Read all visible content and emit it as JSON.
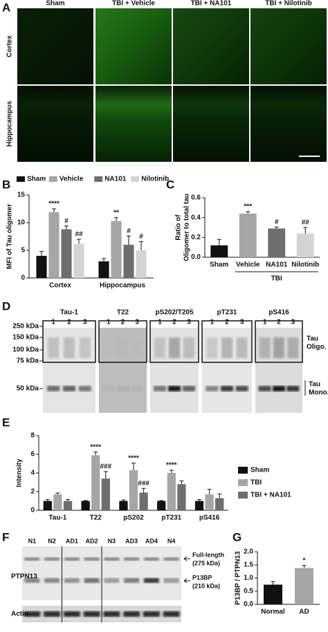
{
  "panel_a": {
    "label": "A",
    "columns": [
      "Sham",
      "TBI + Vehicle",
      "TBI + NA101",
      "TBI + Nilotinib"
    ],
    "rows": [
      "Cortex",
      "Hippocampus"
    ]
  },
  "chart_data": [
    {
      "type": "bar",
      "panel": "B",
      "y_label": "MFI of Tau oligomer",
      "categories": [
        "Cortex",
        "Hippocampus"
      ],
      "series": [
        {
          "name": "Sham",
          "color": "#111111",
          "values": [
            4,
            3
          ],
          "errors": [
            0.8,
            0.5
          ]
        },
        {
          "name": "Vehicle",
          "color": "#a6a6a6",
          "values": [
            11.9,
            10.3
          ],
          "errors": [
            0.6,
            0.6
          ],
          "annotations": [
            "****",
            "**"
          ]
        },
        {
          "name": "NA101",
          "color": "#6e6e6e",
          "values": [
            8.8,
            6
          ],
          "errors": [
            0.6,
            1.6
          ],
          "annotations": [
            "#",
            "#"
          ]
        },
        {
          "name": "Nilotinib",
          "color": "#d4d4d4",
          "values": [
            6.2,
            5
          ],
          "errors": [
            0.8,
            1.6
          ],
          "annotations": [
            "##",
            "#"
          ]
        }
      ],
      "ylim": [
        0,
        15
      ],
      "yticks": [
        0,
        5,
        10,
        15
      ],
      "legend": "top"
    },
    {
      "type": "bar",
      "panel": "C",
      "y_label": [
        "Ratio of",
        "Oligomer to total tau"
      ],
      "categories": [
        "Sham",
        "Vehicle",
        "NA101",
        "Nilotinib"
      ],
      "values": [
        0.12,
        0.44,
        0.29,
        0.24
      ],
      "errors": [
        0.06,
        0.02,
        0.015,
        0.06
      ],
      "colors": [
        "#111111",
        "#a6a6a6",
        "#6e6e6e",
        "#d4d4d4"
      ],
      "annotations": [
        null,
        "***",
        "#",
        "##"
      ],
      "group_label": "TBI",
      "ylim": [
        0,
        0.6
      ],
      "yticks": [
        {
          "value": 0,
          "label": "0.0"
        },
        0.2,
        0.4,
        0.6
      ]
    },
    {
      "type": "bar",
      "panel": "E",
      "y_label": "Intensity",
      "categories": [
        "Tau-1",
        "T22",
        "pS202",
        "pT231",
        "pS416"
      ],
      "series": [
        {
          "name": "Sham",
          "color": "#111111",
          "values": [
            1,
            1,
            1,
            1,
            1
          ],
          "errors": [
            0.15,
            0.05,
            0.1,
            0.05,
            0.15
          ]
        },
        {
          "name": "TBI",
          "color": "#a6a6a6",
          "values": [
            1.7,
            5.9,
            4.3,
            4.0,
            1.7
          ],
          "errors": [
            0.15,
            0.35,
            0.75,
            0.3,
            0.55
          ],
          "annotations": [
            null,
            "****",
            "****",
            "****",
            null
          ]
        },
        {
          "name": "TBI + NA101",
          "color": "#6e6e6e",
          "values": [
            1.0,
            3.4,
            1.9,
            2.8,
            1.3
          ],
          "errors": [
            0.15,
            0.75,
            0.45,
            0.35,
            0.45
          ],
          "annotations": [
            null,
            "###",
            "###",
            null,
            null
          ]
        }
      ],
      "ylim": [
        0,
        8
      ],
      "yticks": [
        0,
        2,
        4,
        6,
        8
      ],
      "legend": "right"
    },
    {
      "type": "bar",
      "panel": "G",
      "y_label": "P13BP / PTPN13",
      "categories": [
        "Normal",
        "AD"
      ],
      "values": [
        0.75,
        1.38
      ],
      "errors": [
        0.12,
        0.1
      ],
      "colors": [
        "#111111",
        "#a6a6a6"
      ],
      "annotations": [
        null,
        "*"
      ],
      "ylim": [
        0,
        2
      ],
      "yticks": [
        {
          "value": 0,
          "label": "0.0"
        },
        0.5,
        {
          "value": 1,
          "label": "1.0"
        },
        1.5,
        {
          "value": 2,
          "label": "2.0"
        }
      ]
    }
  ],
  "panel_d": {
    "label": "D",
    "blots": [
      "Tau-1",
      "T22",
      "pS202/T205",
      "pT231",
      "pS416"
    ],
    "lanes": [
      "1",
      "2",
      "3"
    ],
    "markers": [
      "250 kDa",
      "150 kDa",
      "100 kDa",
      "75 kDa",
      "50 kDa"
    ],
    "oligo_label": [
      "Tau",
      "Oligo."
    ],
    "mono_label": [
      "Tau",
      "Mono."
    ]
  },
  "panel_f": {
    "label": "F",
    "lanes": [
      "N1",
      "N2",
      "AD1",
      "AD2",
      "N3",
      "AD3",
      "AD4",
      "N4"
    ],
    "target": "PTPN13",
    "loading": "Actin",
    "full_length": [
      "Full-length",
      "(275 kDa)"
    ],
    "fragment": [
      "P13BP",
      "(210 kDa)"
    ]
  }
}
